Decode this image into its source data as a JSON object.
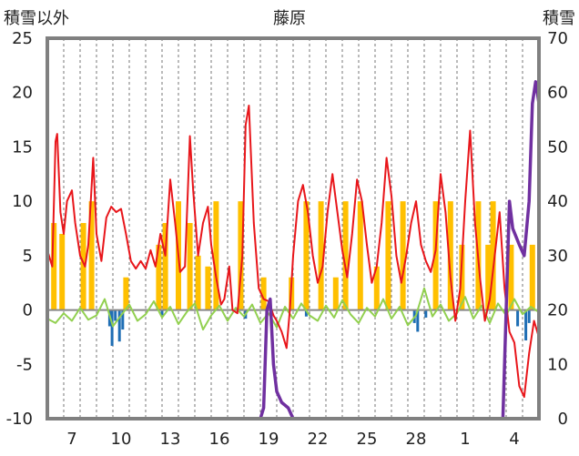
{
  "chart_data": {
    "type": "line",
    "title": "藤原",
    "left_axis_label": "積雪以外",
    "right_axis_label": "積雪",
    "left_ylim": [
      -10,
      25
    ],
    "left_ticks": [
      25,
      20,
      15,
      10,
      5,
      0,
      -5,
      -10
    ],
    "right_ylim": [
      0,
      70
    ],
    "right_ticks": [
      70,
      60,
      50,
      40,
      30,
      20,
      10,
      0
    ],
    "x_range_days": [
      0,
      30
    ],
    "x_ticks": [
      {
        "day": 1.5,
        "label": "7"
      },
      {
        "day": 4.5,
        "label": "10"
      },
      {
        "day": 7.5,
        "label": "13"
      },
      {
        "day": 10.5,
        "label": "16"
      },
      {
        "day": 13.5,
        "label": "19"
      },
      {
        "day": 16.5,
        "label": "22"
      },
      {
        "day": 19.5,
        "label": "25"
      },
      {
        "day": 22.5,
        "label": "28"
      },
      {
        "day": 25.5,
        "label": "1"
      },
      {
        "day": 28.5,
        "label": "4"
      }
    ],
    "colors": {
      "temperature": "#e8161b",
      "sunshine": "#ffc000",
      "temp_anomaly": "#92d050",
      "precip": "#1f6eb4",
      "snow_depth": "#7030a0",
      "zero_line": "#888888",
      "frame": "#808080"
    },
    "sunshine_bars": [
      [
        0.4,
        8
      ],
      [
        0.9,
        7
      ],
      [
        2.2,
        8
      ],
      [
        2.7,
        10
      ],
      [
        4.8,
        3
      ],
      [
        6.8,
        6
      ],
      [
        7.2,
        8
      ],
      [
        8.0,
        10
      ],
      [
        8.7,
        8
      ],
      [
        9.2,
        5
      ],
      [
        9.8,
        4
      ],
      [
        10.3,
        10
      ],
      [
        11.8,
        10
      ],
      [
        13.2,
        3
      ],
      [
        14.9,
        3
      ],
      [
        15.8,
        10
      ],
      [
        16.7,
        10
      ],
      [
        17.6,
        3
      ],
      [
        18.2,
        10
      ],
      [
        19.1,
        10
      ],
      [
        20.1,
        4
      ],
      [
        20.8,
        10
      ],
      [
        21.7,
        10
      ],
      [
        23.7,
        10
      ],
      [
        24.6,
        10
      ],
      [
        25.3,
        6
      ],
      [
        26.3,
        10
      ],
      [
        26.9,
        6
      ],
      [
        27.2,
        10
      ],
      [
        28.3,
        6
      ],
      [
        29.6,
        6
      ]
    ],
    "precip_bars": [
      [
        3.8,
        -1.5
      ],
      [
        3.95,
        -3.3
      ],
      [
        4.15,
        -1.0
      ],
      [
        4.4,
        -2.9
      ],
      [
        4.6,
        -1.8
      ],
      [
        7.0,
        -0.5
      ],
      [
        12.1,
        -0.8
      ],
      [
        15.8,
        -0.6
      ],
      [
        22.4,
        -1.2
      ],
      [
        22.6,
        -2.0
      ],
      [
        23.1,
        -0.7
      ],
      [
        28.7,
        -1.5
      ],
      [
        29.2,
        -2.8
      ],
      [
        29.4,
        -1.2
      ]
    ],
    "temperature": [
      [
        0.0,
        5.5
      ],
      [
        0.3,
        4.0
      ],
      [
        0.5,
        15.5
      ],
      [
        0.6,
        16.2
      ],
      [
        0.8,
        9.0
      ],
      [
        1.0,
        7.0
      ],
      [
        1.2,
        10.0
      ],
      [
        1.5,
        11.0
      ],
      [
        1.7,
        8.0
      ],
      [
        2.0,
        5.0
      ],
      [
        2.3,
        4.0
      ],
      [
        2.5,
        6.0
      ],
      [
        2.8,
        14.0
      ],
      [
        3.0,
        7.0
      ],
      [
        3.3,
        4.5
      ],
      [
        3.6,
        8.5
      ],
      [
        3.9,
        9.5
      ],
      [
        4.2,
        9.0
      ],
      [
        4.5,
        9.3
      ],
      [
        4.8,
        7.0
      ],
      [
        5.1,
        4.5
      ],
      [
        5.4,
        3.8
      ],
      [
        5.7,
        4.5
      ],
      [
        6.0,
        3.8
      ],
      [
        6.3,
        5.5
      ],
      [
        6.6,
        4.0
      ],
      [
        6.9,
        7.0
      ],
      [
        7.2,
        5.0
      ],
      [
        7.5,
        12.0
      ],
      [
        7.8,
        8.0
      ],
      [
        8.1,
        3.5
      ],
      [
        8.4,
        4.0
      ],
      [
        8.7,
        16.0
      ],
      [
        8.9,
        11.0
      ],
      [
        9.2,
        5.0
      ],
      [
        9.5,
        8.0
      ],
      [
        9.8,
        9.5
      ],
      [
        10.0,
        6.0
      ],
      [
        10.3,
        3.0
      ],
      [
        10.6,
        0.5
      ],
      [
        10.8,
        1.0
      ],
      [
        11.1,
        4.0
      ],
      [
        11.3,
        0.0
      ],
      [
        11.6,
        -0.3
      ],
      [
        11.9,
        5.0
      ],
      [
        12.1,
        17.0
      ],
      [
        12.3,
        18.8
      ],
      [
        12.6,
        8.0
      ],
      [
        12.9,
        2.0
      ],
      [
        13.2,
        1.0
      ],
      [
        13.5,
        0.8
      ],
      [
        13.8,
        -0.5
      ],
      [
        14.0,
        -1.0
      ],
      [
        14.3,
        -2.0
      ],
      [
        14.6,
        -3.5
      ],
      [
        14.8,
        0.0
      ],
      [
        15.0,
        5.0
      ],
      [
        15.3,
        10.0
      ],
      [
        15.6,
        11.5
      ],
      [
        15.9,
        9.0
      ],
      [
        16.2,
        5.0
      ],
      [
        16.5,
        2.5
      ],
      [
        16.8,
        4.0
      ],
      [
        17.1,
        9.0
      ],
      [
        17.4,
        12.5
      ],
      [
        17.7,
        9.0
      ],
      [
        18.0,
        5.5
      ],
      [
        18.3,
        3.0
      ],
      [
        18.6,
        7.0
      ],
      [
        18.9,
        12.0
      ],
      [
        19.2,
        10.0
      ],
      [
        19.5,
        6.0
      ],
      [
        19.8,
        2.5
      ],
      [
        20.1,
        4.0
      ],
      [
        20.4,
        8.0
      ],
      [
        20.7,
        14.0
      ],
      [
        21.0,
        10.5
      ],
      [
        21.3,
        5.0
      ],
      [
        21.6,
        2.5
      ],
      [
        21.9,
        5.0
      ],
      [
        22.2,
        8.0
      ],
      [
        22.5,
        10.0
      ],
      [
        22.8,
        6.0
      ],
      [
        23.1,
        4.5
      ],
      [
        23.4,
        3.5
      ],
      [
        23.7,
        5.5
      ],
      [
        24.0,
        12.5
      ],
      [
        24.3,
        9.0
      ],
      [
        24.6,
        3.0
      ],
      [
        24.9,
        -1.0
      ],
      [
        25.2,
        2.0
      ],
      [
        25.5,
        10.0
      ],
      [
        25.8,
        16.5
      ],
      [
        26.1,
        8.0
      ],
      [
        26.4,
        3.0
      ],
      [
        26.7,
        -1.0
      ],
      [
        27.0,
        1.0
      ],
      [
        27.3,
        5.0
      ],
      [
        27.6,
        9.0
      ],
      [
        27.9,
        2.0
      ],
      [
        28.2,
        -2.0
      ],
      [
        28.5,
        -3.0
      ],
      [
        28.8,
        -7.0
      ],
      [
        29.1,
        -8.0
      ],
      [
        29.4,
        -4.0
      ],
      [
        29.7,
        -1.0
      ],
      [
        30.0,
        -2.5
      ]
    ],
    "temp_anomaly": [
      [
        0.0,
        -0.8
      ],
      [
        0.5,
        -1.2
      ],
      [
        1.0,
        -0.3
      ],
      [
        1.5,
        -1.0
      ],
      [
        2.0,
        0.2
      ],
      [
        2.5,
        -0.9
      ],
      [
        3.0,
        -0.5
      ],
      [
        3.5,
        1.0
      ],
      [
        4.0,
        -1.5
      ],
      [
        4.5,
        -0.5
      ],
      [
        5.0,
        0.5
      ],
      [
        5.5,
        -1.0
      ],
      [
        6.0,
        -0.4
      ],
      [
        6.5,
        0.8
      ],
      [
        7.0,
        -0.7
      ],
      [
        7.5,
        0.3
      ],
      [
        8.0,
        -1.3
      ],
      [
        8.5,
        -0.2
      ],
      [
        9.0,
        0.6
      ],
      [
        9.5,
        -1.8
      ],
      [
        10.0,
        -0.5
      ],
      [
        10.5,
        0.4
      ],
      [
        11.0,
        -1.0
      ],
      [
        11.5,
        0.2
      ],
      [
        12.0,
        -0.6
      ],
      [
        12.5,
        0.5
      ],
      [
        13.0,
        -1.2
      ],
      [
        13.5,
        -0.3
      ],
      [
        14.0,
        -1.6
      ],
      [
        14.5,
        0.3
      ],
      [
        15.0,
        -0.8
      ],
      [
        15.5,
        0.6
      ],
      [
        16.0,
        -0.5
      ],
      [
        16.5,
        -1.0
      ],
      [
        17.0,
        0.4
      ],
      [
        17.5,
        -0.7
      ],
      [
        18.0,
        0.9
      ],
      [
        18.5,
        -0.4
      ],
      [
        19.0,
        -1.2
      ],
      [
        19.5,
        0.2
      ],
      [
        20.0,
        -0.6
      ],
      [
        20.5,
        1.0
      ],
      [
        21.0,
        -0.8
      ],
      [
        21.5,
        0.3
      ],
      [
        22.0,
        -1.4
      ],
      [
        22.5,
        -0.5
      ],
      [
        23.0,
        2.0
      ],
      [
        23.5,
        -0.6
      ],
      [
        24.0,
        0.5
      ],
      [
        24.5,
        -1.0
      ],
      [
        25.0,
        -0.3
      ],
      [
        25.5,
        1.2
      ],
      [
        26.0,
        -0.8
      ],
      [
        26.5,
        0.4
      ],
      [
        27.0,
        -1.2
      ],
      [
        27.5,
        0.6
      ],
      [
        28.0,
        -0.5
      ],
      [
        28.5,
        1.0
      ],
      [
        29.0,
        -0.4
      ],
      [
        29.5,
        0.3
      ],
      [
        30.0,
        -0.2
      ]
    ],
    "snow_depth": [
      [
        0.0,
        0
      ],
      [
        13.0,
        0
      ],
      [
        13.2,
        2
      ],
      [
        13.4,
        20
      ],
      [
        13.6,
        22
      ],
      [
        13.8,
        10
      ],
      [
        14.0,
        5
      ],
      [
        14.3,
        3
      ],
      [
        14.7,
        2
      ],
      [
        15.0,
        0
      ],
      [
        27.8,
        0
      ],
      [
        28.0,
        20
      ],
      [
        28.2,
        40
      ],
      [
        28.4,
        35
      ],
      [
        28.8,
        32
      ],
      [
        29.1,
        30
      ],
      [
        29.4,
        40
      ],
      [
        29.6,
        58
      ],
      [
        29.8,
        62
      ],
      [
        30.0,
        58
      ]
    ]
  }
}
